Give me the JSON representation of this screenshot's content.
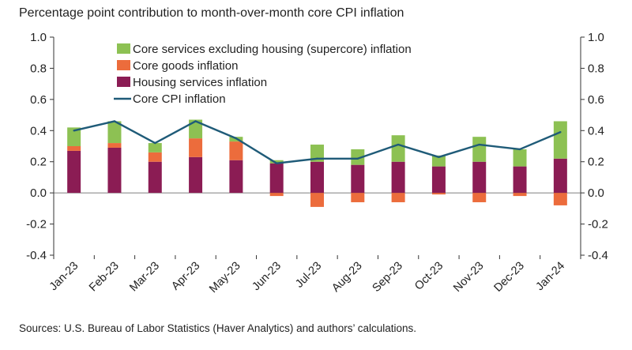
{
  "chart_data": {
    "type": "bar",
    "title": "Percentage point contribution to month-over-month core CPI inflation",
    "source": "Sources: U.S. Bureau of Labor Statistics (Haver Analytics) and authors’ calculations.",
    "categories": [
      "Jan-23",
      "Feb-23",
      "Mar-23",
      "Apr-23",
      "May-23",
      "Jun-23",
      "Jul-23",
      "Aug-23",
      "Sep-23",
      "Oct-23",
      "Nov-23",
      "Dec-23",
      "Jan-24"
    ],
    "series": [
      {
        "name": "Core services excluding housing (supercore) inflation",
        "kind": "stacked-bar",
        "color": "#8dc153",
        "values": [
          0.12,
          0.14,
          0.06,
          0.12,
          0.03,
          0.02,
          0.11,
          0.1,
          0.17,
          0.07,
          0.16,
          0.11,
          0.24
        ]
      },
      {
        "name": "Core goods inflation",
        "kind": "stacked-bar",
        "color": "#ec6c3c",
        "values": [
          0.03,
          0.03,
          0.06,
          0.12,
          0.12,
          -0.02,
          -0.09,
          -0.06,
          -0.06,
          -0.01,
          -0.06,
          -0.02,
          -0.08
        ]
      },
      {
        "name": "Housing services inflation",
        "kind": "stacked-bar",
        "color": "#8b1c54",
        "values": [
          0.27,
          0.29,
          0.2,
          0.23,
          0.21,
          0.19,
          0.2,
          0.18,
          0.2,
          0.17,
          0.2,
          0.17,
          0.22
        ]
      },
      {
        "name": "Core CPI inflation",
        "kind": "line",
        "color": "#1f5b78",
        "values": [
          0.4,
          0.46,
          0.32,
          0.46,
          0.35,
          0.19,
          0.22,
          0.22,
          0.31,
          0.23,
          0.31,
          0.28,
          0.39
        ]
      }
    ],
    "ylim": [
      -0.4,
      1.0
    ],
    "yticks": [
      "1.0",
      "0.8",
      "0.6",
      "0.4",
      "0.2",
      "0.0",
      "-0.2",
      "-0.4"
    ],
    "ytick_values": [
      1.0,
      0.8,
      0.6,
      0.4,
      0.2,
      0.0,
      -0.2,
      -0.4
    ],
    "xlabel": "",
    "ylabel": "",
    "legend_position": "top-left",
    "grid": false
  }
}
